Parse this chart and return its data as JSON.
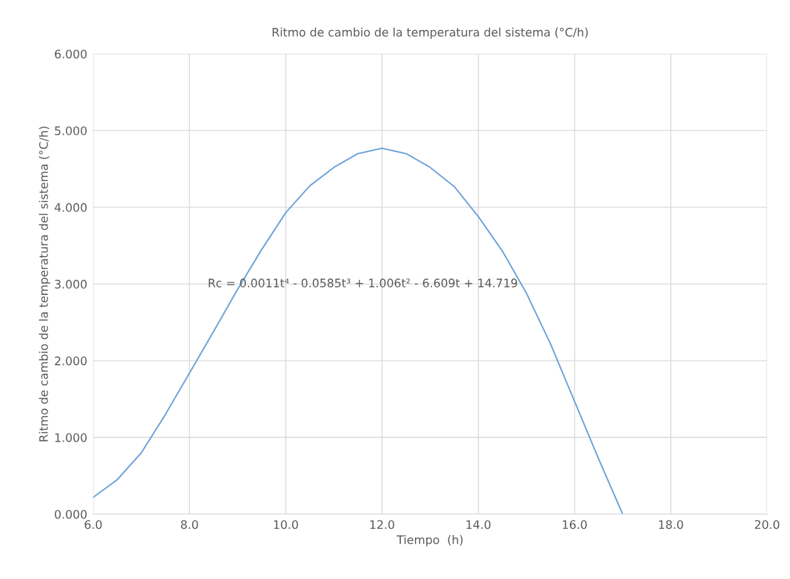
{
  "chart_data": {
    "type": "line",
    "title": "Ritmo de cambio de la temperatura del sistema (°C/h)",
    "xlabel": "Tiempo  (h)",
    "ylabel": "Ritmo de cambio de la temperatura del sistema (°C/h)",
    "x": [
      6,
      6.5,
      7,
      7.5,
      8,
      8.5,
      9,
      9.5,
      10,
      10.5,
      11,
      11.5,
      12,
      12.5,
      13,
      13.5,
      14,
      14.5,
      15,
      15.5,
      16,
      16.5,
      17
    ],
    "series": [
      {
        "color": "#6fa3d8",
        "values": [
          0.22,
          0.45,
          0.8,
          1.3,
          1.84,
          2.38,
          2.93,
          3.45,
          3.93,
          4.28,
          4.52,
          4.7,
          4.77,
          4.7,
          4.52,
          4.27,
          3.88,
          3.43,
          2.88,
          2.22,
          1.47,
          0.72,
          0.0
        ]
      }
    ],
    "xlim": [
      6,
      20
    ],
    "ylim": [
      0,
      6
    ],
    "xticks": [
      {
        "value": 6,
        "label": "6.0"
      },
      {
        "value": 8,
        "label": "8.0"
      },
      {
        "value": 10,
        "label": "10.0"
      },
      {
        "value": 12,
        "label": "12.0"
      },
      {
        "value": 14,
        "label": "14.0"
      },
      {
        "value": 16,
        "label": "16.0"
      },
      {
        "value": 18,
        "label": "18.0"
      },
      {
        "value": 20,
        "label": "20.0"
      }
    ],
    "yticks": [
      {
        "value": 0,
        "label": "0.000"
      },
      {
        "value": 1,
        "label": "1.000"
      },
      {
        "value": 2,
        "label": "2.000"
      },
      {
        "value": 3,
        "label": "3.000"
      },
      {
        "value": 4,
        "label": "4.000"
      },
      {
        "value": 5,
        "label": "5.000"
      },
      {
        "value": 6,
        "label": "6.000"
      }
    ],
    "grid": true,
    "legend": false,
    "marker": "none",
    "line_style": "solid",
    "annotations": [
      "Rc = 0.0011t⁴ - 0.0585t³ + 1.006t² - 6.609t + 14.719"
    ]
  }
}
